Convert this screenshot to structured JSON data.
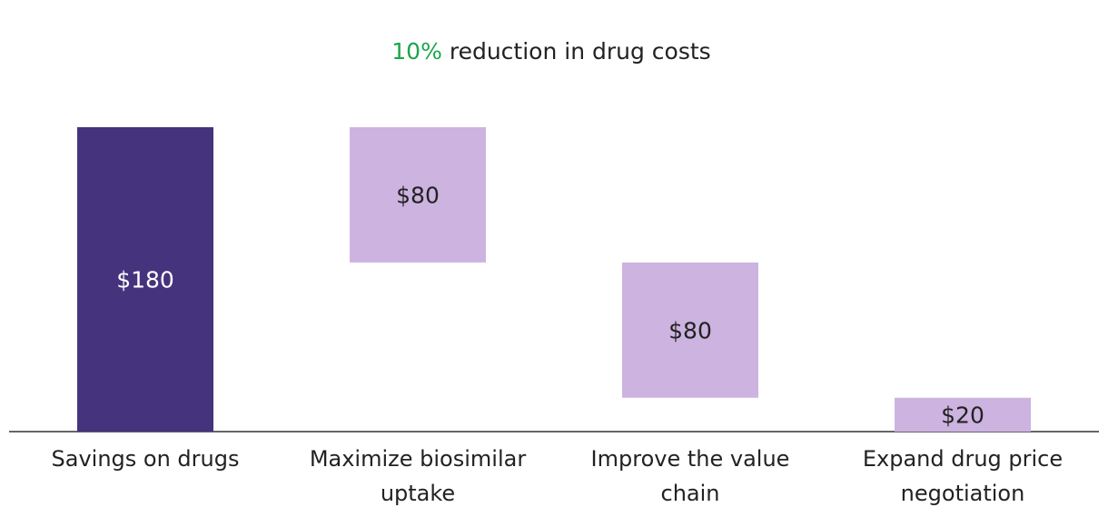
{
  "chart_data": {
    "type": "waterfall",
    "title_highlight": "10%",
    "title": "reduction in drug costs",
    "title_highlight_color": "#1aa64a",
    "categories": [
      "Savings on drugs",
      "Maximize biosimilar uptake",
      "Improve the value chain",
      "Expand drug price negotiation"
    ],
    "values": [
      180,
      80,
      80,
      20
    ],
    "value_labels": [
      "$180",
      "$80",
      "$80",
      "$20"
    ],
    "total_color": "#46337e",
    "step_color": "#cdb3e0"
  }
}
